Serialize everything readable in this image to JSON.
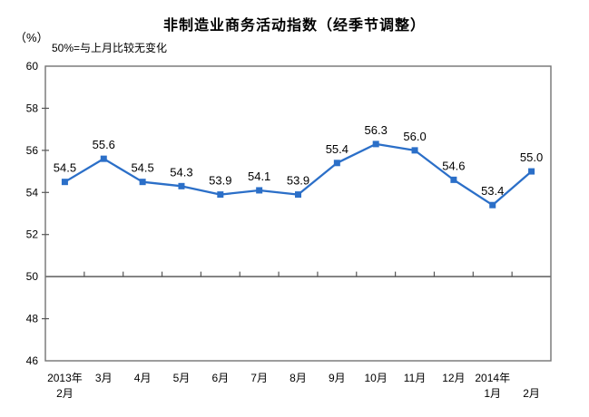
{
  "title": "非制造业商务活动指数（经季节调整）",
  "unit_label": "（%）",
  "note": "50%=与上月比较无变化",
  "colors": {
    "line": "#2B6FC8",
    "axis": "#737373",
    "tick": "#555555",
    "text": "#000000"
  },
  "chart_data": {
    "type": "line",
    "title": "非制造业商务活动指数（经季节调整）",
    "ylabel": "（%）",
    "annotation": "50%=与上月比较无变化",
    "categories_line1": [
      "2013年",
      "3月",
      "4月",
      "5月",
      "6月",
      "7月",
      "8月",
      "9月",
      "10月",
      "11月",
      "12月",
      "2014年",
      ""
    ],
    "categories_line2": [
      "2月",
      "",
      "",
      "",
      "",
      "",
      "",
      "",
      "",
      "",
      "",
      "1月",
      "2月"
    ],
    "values": [
      54.5,
      55.6,
      54.5,
      54.3,
      53.9,
      54.1,
      53.9,
      55.4,
      56.3,
      56.0,
      54.6,
      53.4,
      55.0
    ],
    "ylim": [
      46,
      60
    ],
    "ytick_step": 2,
    "baseline": 50,
    "grid": false,
    "legend_position": "none",
    "marker": "square",
    "value_decimals": 1
  }
}
